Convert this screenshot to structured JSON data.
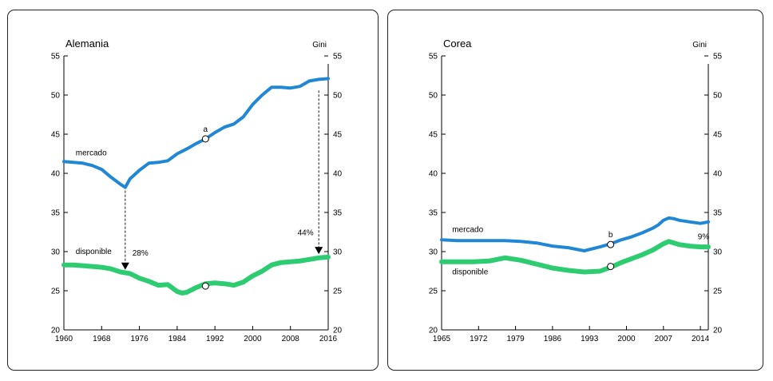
{
  "chart_data": [
    {
      "type": "line",
      "title": "Alemania",
      "right_axis_title": "Gini",
      "x_ticks": [
        "1960",
        "1968",
        "1976",
        "1984",
        "1992",
        "2000",
        "2008",
        "2016"
      ],
      "y_ticks": [
        "20",
        "25",
        "30",
        "35",
        "40",
        "45",
        "50",
        "55"
      ],
      "xlim": [
        1960,
        2016
      ],
      "ylim": [
        20,
        55
      ],
      "series": [
        {
          "name": "mercado",
          "color": "#1f87d6",
          "x": [
            1960,
            1962,
            1964,
            1966,
            1968,
            1970,
            1972,
            1973,
            1974,
            1976,
            1978,
            1980,
            1982,
            1984,
            1986,
            1988,
            1990,
            1992,
            1994,
            1996,
            1998,
            2000,
            2002,
            2004,
            2006,
            2008,
            2010,
            2012,
            2014,
            2016
          ],
          "y": [
            41.5,
            41.4,
            41.3,
            41.0,
            40.5,
            39.5,
            38.6,
            38.2,
            39.3,
            40.4,
            41.3,
            41.4,
            41.6,
            42.5,
            43.1,
            43.8,
            44.4,
            45.2,
            45.9,
            46.3,
            47.2,
            48.8,
            50.0,
            51.0,
            51.0,
            50.9,
            51.1,
            51.8,
            52.0,
            52.1
          ]
        },
        {
          "name": "disponible",
          "color": "#2ecc71",
          "x": [
            1960,
            1962,
            1964,
            1966,
            1968,
            1970,
            1972,
            1974,
            1976,
            1978,
            1980,
            1982,
            1984,
            1985,
            1986,
            1988,
            1990,
            1992,
            1994,
            1996,
            1998,
            2000,
            2002,
            2004,
            2006,
            2008,
            2010,
            2012,
            2014,
            2016
          ],
          "y": [
            28.3,
            28.3,
            28.2,
            28.1,
            28.0,
            27.8,
            27.4,
            27.2,
            26.6,
            26.2,
            25.7,
            25.8,
            24.9,
            24.7,
            24.8,
            25.4,
            25.9,
            26.0,
            25.9,
            25.7,
            26.1,
            26.9,
            27.5,
            28.3,
            28.6,
            28.7,
            28.8,
            29.0,
            29.2,
            29.3
          ]
        }
      ],
      "series_labels": [
        {
          "series": "mercado",
          "text": "mercado",
          "x": 1962.5,
          "y": 42.3
        },
        {
          "series": "disponible",
          "text": "disponible",
          "x": 1962.5,
          "y": 29.7
        }
      ],
      "markers": [
        {
          "x": 1990,
          "y": 44.4,
          "label": "a"
        },
        {
          "x": 1990,
          "y": 25.6,
          "label": ""
        }
      ],
      "annotations": [
        {
          "text": "28%",
          "from": {
            "x": 1973,
            "y": 38.2
          },
          "to": {
            "x": 1973,
            "y": 28.6
          },
          "text_pos": {
            "x": 1974.5,
            "y": 29.5
          }
        },
        {
          "text": "44%",
          "from": {
            "x": 2014,
            "y": 51.0
          },
          "to": {
            "x": 2014,
            "y": 30.6
          },
          "text_pos": {
            "x": 2009.5,
            "y": 32.1
          }
        }
      ]
    },
    {
      "type": "line",
      "title": "Corea",
      "right_axis_title": "Gini",
      "x_ticks": [
        "1965",
        "1972",
        "1979",
        "1986",
        "1993",
        "2000",
        "2007",
        "2014"
      ],
      "y_ticks": [
        "20",
        "25",
        "30",
        "35",
        "40",
        "45",
        "50",
        "55"
      ],
      "xlim": [
        1965,
        2015.5
      ],
      "ylim": [
        20,
        55
      ],
      "series": [
        {
          "name": "mercado",
          "color": "#1f87d6",
          "x": [
            1965,
            1968,
            1971,
            1974,
            1977,
            1980,
            1983,
            1986,
            1989,
            1992,
            1995,
            1997,
            1999,
            2001,
            2003,
            2005,
            2006,
            2007,
            2008,
            2009,
            2010,
            2012,
            2014,
            2015.5
          ],
          "y": [
            31.5,
            31.4,
            31.4,
            31.4,
            31.4,
            31.3,
            31.1,
            30.7,
            30.5,
            30.1,
            30.6,
            31.0,
            31.5,
            31.9,
            32.4,
            33.0,
            33.4,
            34.0,
            34.3,
            34.2,
            34.0,
            33.8,
            33.6,
            33.8
          ]
        },
        {
          "name": "disponible",
          "color": "#2ecc71",
          "x": [
            1965,
            1968,
            1971,
            1974,
            1977,
            1980,
            1983,
            1986,
            1989,
            1992,
            1995,
            1997,
            1999,
            2001,
            2003,
            2005,
            2007,
            2008,
            2009,
            2010,
            2012,
            2014,
            2015.5
          ],
          "y": [
            28.7,
            28.7,
            28.7,
            28.8,
            29.2,
            28.9,
            28.4,
            27.9,
            27.6,
            27.4,
            27.5,
            28.0,
            28.6,
            29.1,
            29.6,
            30.2,
            31.0,
            31.3,
            31.1,
            30.9,
            30.7,
            30.6,
            30.6
          ]
        }
      ],
      "series_labels": [
        {
          "series": "mercado",
          "text": "mercado",
          "x": 1967,
          "y": 32.5
        },
        {
          "series": "disponible",
          "text": "disponible",
          "x": 1967,
          "y": 27.1
        }
      ],
      "markers": [
        {
          "x": 1997,
          "y": 30.9,
          "label": "b"
        },
        {
          "x": 1997,
          "y": 28.1,
          "label": ""
        }
      ],
      "annotations": [
        {
          "text": "9%",
          "from": null,
          "to": null,
          "text_pos": {
            "x": 2013.5,
            "y": 31.6
          }
        }
      ]
    }
  ]
}
